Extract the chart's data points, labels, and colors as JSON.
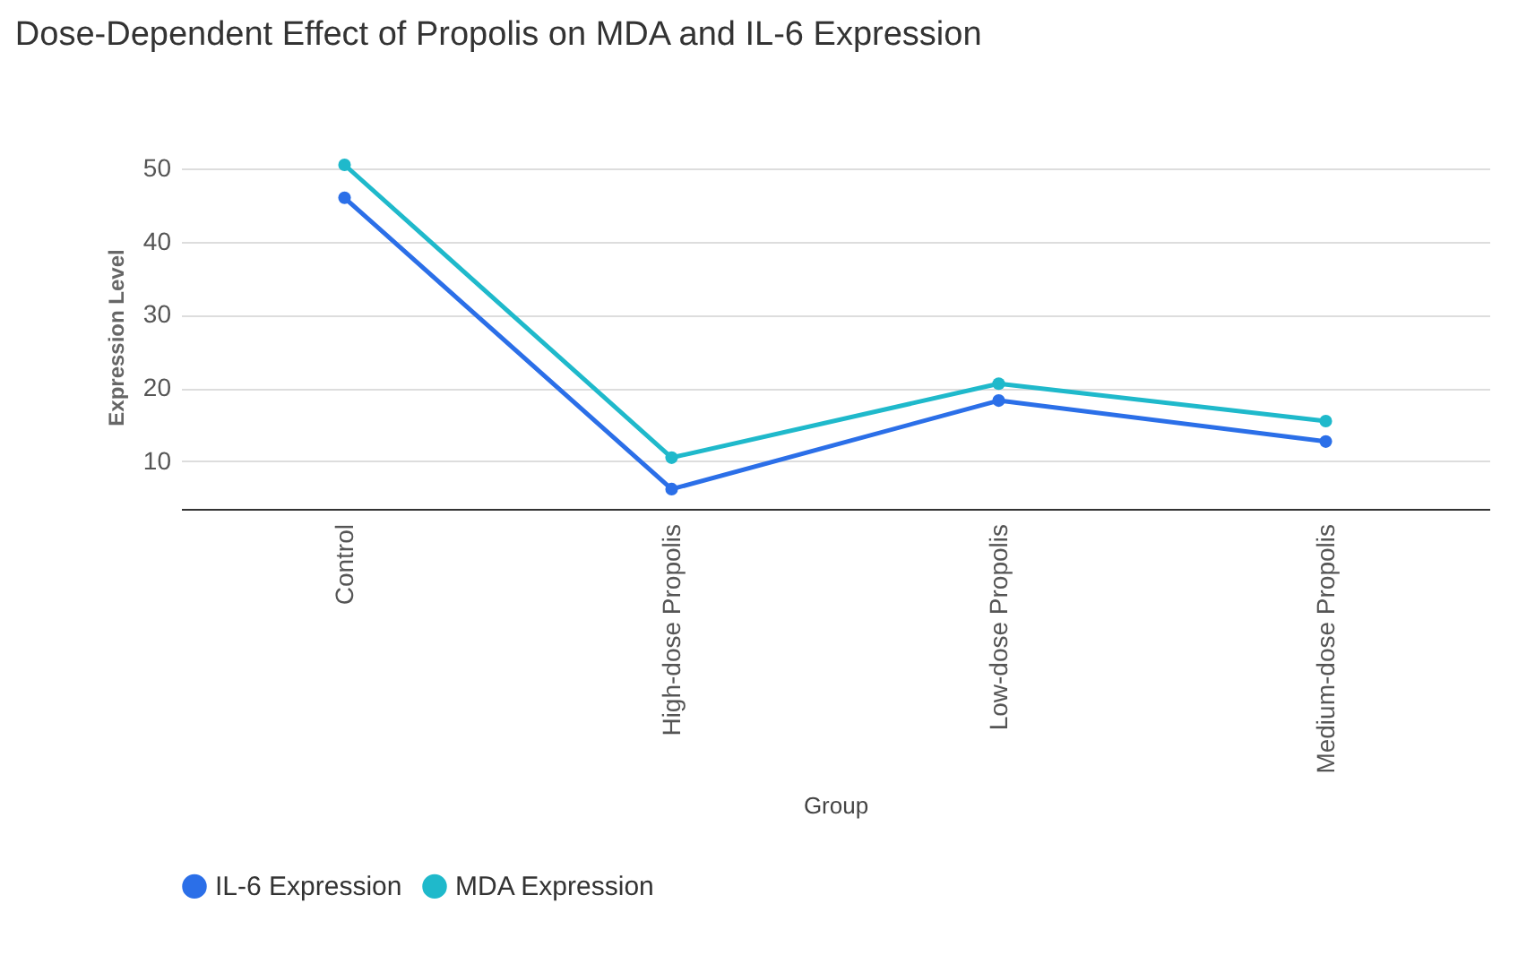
{
  "chart_data": {
    "type": "line",
    "title": "Dose-Dependent Effect of Propolis on MDA and IL-6 Expression",
    "xlabel": "Group",
    "ylabel": "Expression Level",
    "categories": [
      "Control",
      "High-dose Propolis",
      "Low-dose Propolis",
      "Medium-dose Propolis"
    ],
    "series": [
      {
        "name": "IL-6 Expression",
        "color": "#2b6fe8",
        "values": [
          46,
          6.2,
          18.3,
          12.7
        ]
      },
      {
        "name": "MDA Expression",
        "color": "#1fb9cb",
        "values": [
          50.5,
          10.5,
          20.6,
          15.5
        ]
      }
    ],
    "ylim": [
      3.5,
      50.5
    ],
    "yticks": [
      10,
      20,
      30,
      40,
      50
    ],
    "grid": "y",
    "legend": "bottom left",
    "marker": "circle",
    "line_style": "solid"
  }
}
